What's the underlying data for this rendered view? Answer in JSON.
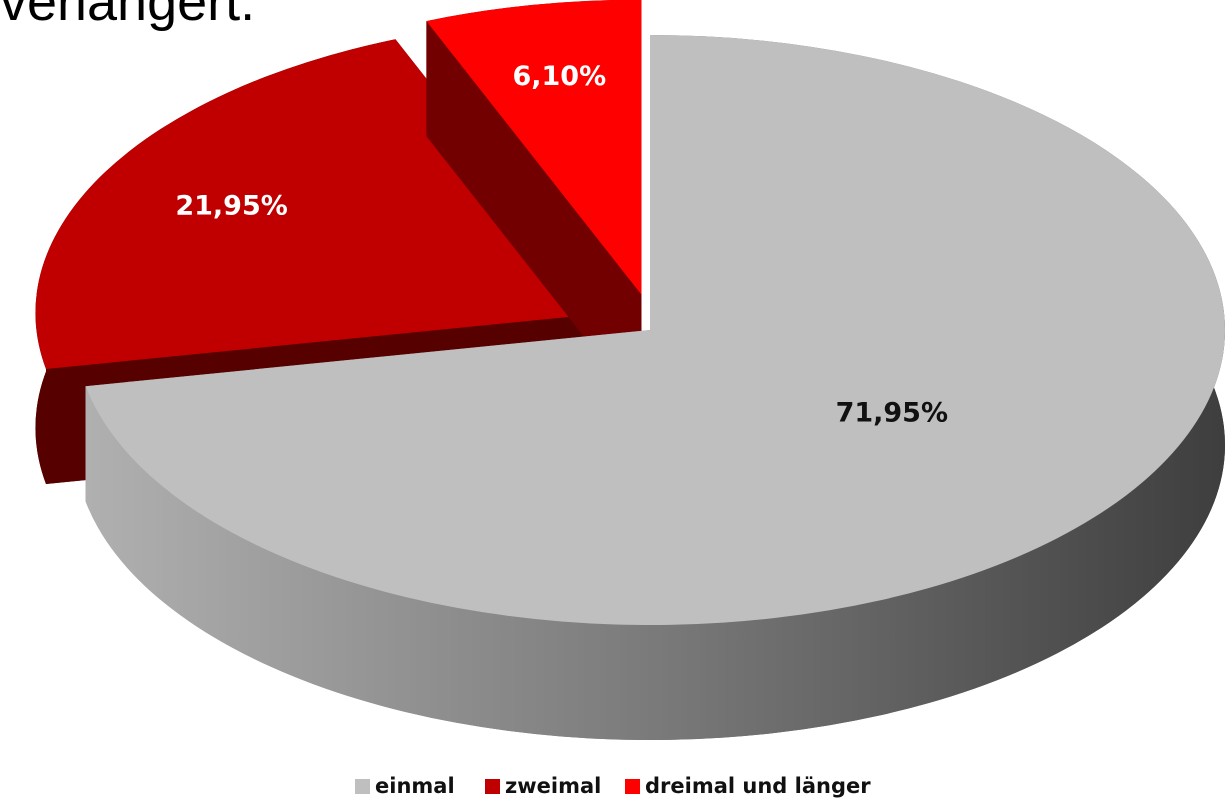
{
  "chart_data": {
    "type": "pie",
    "title": "verlängert.",
    "categories": [
      "einmal",
      "zweimal",
      "dreimal und länger"
    ],
    "values": [
      71.95,
      21.95,
      6.1
    ],
    "value_labels": [
      "71,95%",
      "21,95%",
      "6,10%"
    ],
    "colors": [
      "#bfbfbf",
      "#c00000",
      "#ff0000"
    ],
    "legend": "bottom"
  }
}
